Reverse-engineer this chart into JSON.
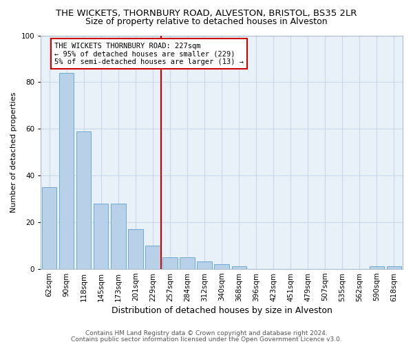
{
  "title": "THE WICKETS, THORNBURY ROAD, ALVESTON, BRISTOL, BS35 2LR",
  "subtitle": "Size of property relative to detached houses in Alveston",
  "xlabel": "Distribution of detached houses by size in Alveston",
  "ylabel": "Number of detached properties",
  "categories": [
    "62sqm",
    "90sqm",
    "118sqm",
    "145sqm",
    "173sqm",
    "201sqm",
    "229sqm",
    "257sqm",
    "284sqm",
    "312sqm",
    "340sqm",
    "368sqm",
    "396sqm",
    "423sqm",
    "451sqm",
    "479sqm",
    "507sqm",
    "535sqm",
    "562sqm",
    "590sqm",
    "618sqm"
  ],
  "values": [
    35,
    84,
    59,
    28,
    28,
    17,
    10,
    5,
    5,
    3,
    2,
    1,
    0,
    0,
    0,
    0,
    0,
    0,
    0,
    1,
    1
  ],
  "bar_color": "#b8d0e8",
  "bar_edgecolor": "#6aaad4",
  "redline_index": 6,
  "annotation_text": "THE WICKETS THORNBURY ROAD: 227sqm\n← 95% of detached houses are smaller (229)\n5% of semi-detached houses are larger (13) →",
  "annotation_box_color": "#ffffff",
  "annotation_box_edgecolor": "#cc0000",
  "redline_color": "#cc0000",
  "ylim": [
    0,
    100
  ],
  "yticks": [
    0,
    20,
    40,
    60,
    80,
    100
  ],
  "grid_color": "#c8d8e8",
  "background_color": "#e8f0f8",
  "footer1": "Contains HM Land Registry data © Crown copyright and database right 2024.",
  "footer2": "Contains public sector information licensed under the Open Government Licence v3.0.",
  "title_fontsize": 9.5,
  "subtitle_fontsize": 9,
  "xlabel_fontsize": 9,
  "ylabel_fontsize": 8,
  "tick_fontsize": 7.5,
  "annotation_fontsize": 7.5,
  "footer_fontsize": 6.5
}
